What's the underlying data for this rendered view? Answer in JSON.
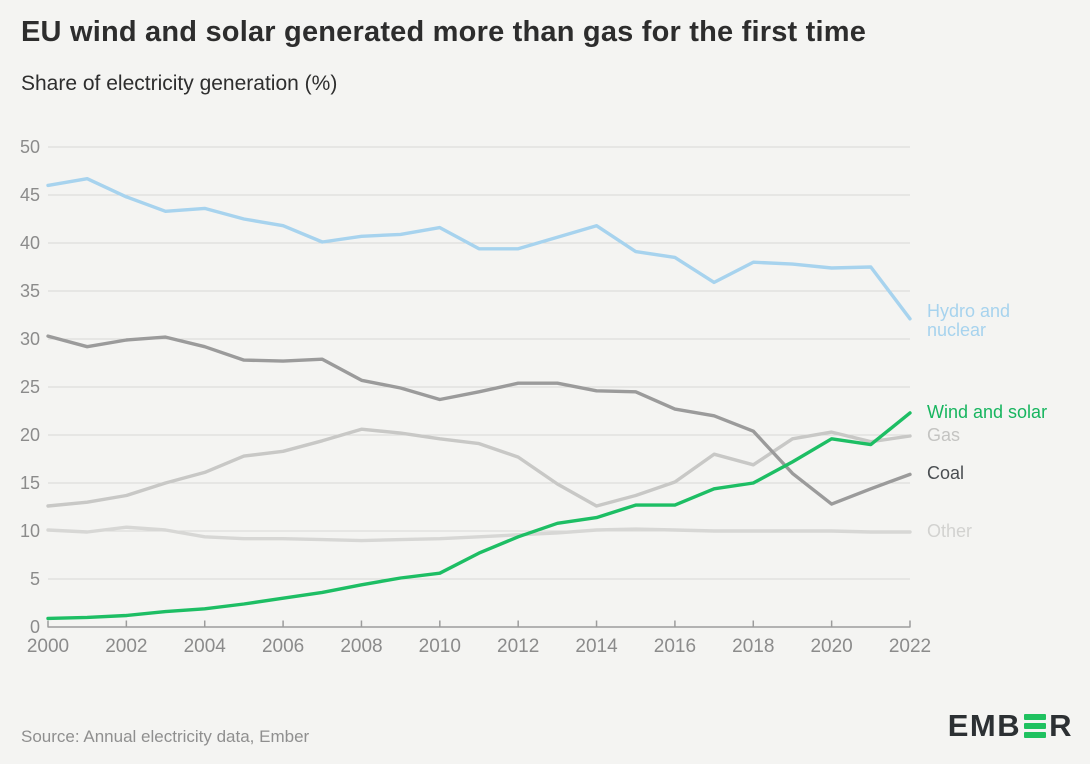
{
  "header": {
    "title": "EU wind and solar generated more than gas for the first time",
    "subtitle": "Share of electricity generation (%)"
  },
  "footer": {
    "source": "Source: Annual electricity data, Ember",
    "logo_name": "EMBER",
    "logo_text_start": "EMB",
    "logo_text_end": "R"
  },
  "colors": {
    "background": "#f4f4f2",
    "grid": "#d9d9d7",
    "axis": "#9c9c9c",
    "tick_label": "#8b8b8b",
    "title_text": "#2d2d2d",
    "source_text": "#8f8f8f",
    "logo_dark": "#2c3033",
    "logo_green": "#1fc15f"
  },
  "chart_data": {
    "type": "line",
    "title": "EU wind and solar generated more than gas for the first time",
    "subtitle": "Share of electricity generation (%)",
    "xlabel": "",
    "ylabel": "Share of electricity generation (%)",
    "x": [
      2000,
      2001,
      2002,
      2003,
      2004,
      2005,
      2006,
      2007,
      2008,
      2009,
      2010,
      2011,
      2012,
      2013,
      2014,
      2015,
      2016,
      2017,
      2018,
      2019,
      2020,
      2021,
      2022
    ],
    "x_tick_labels": [
      "2000",
      "2002",
      "2004",
      "2006",
      "2008",
      "2010",
      "2012",
      "2014",
      "2016",
      "2018",
      "2020",
      "2022"
    ],
    "y_ticks": [
      0,
      5,
      10,
      15,
      20,
      25,
      30,
      35,
      40,
      45,
      50
    ],
    "ylim": [
      0,
      50
    ],
    "xlim": [
      2000,
      2022
    ],
    "grid": "horizontal",
    "legend_position": "right-of-line-ends",
    "series": [
      {
        "name": "Hydro and nuclear",
        "color": "#a7d3ee",
        "label_color": "#a7d3ee",
        "label_two_lines": true,
        "values": [
          46.0,
          46.7,
          44.8,
          43.3,
          43.6,
          42.5,
          41.8,
          40.1,
          40.7,
          40.9,
          41.6,
          39.4,
          39.4,
          40.6,
          41.8,
          39.1,
          38.5,
          35.9,
          38.0,
          37.8,
          37.4,
          37.5,
          32.1
        ]
      },
      {
        "name": "Other",
        "color": "#d7d7d5",
        "label_color": "#d2d2d0",
        "label_two_lines": false,
        "values": [
          10.1,
          9.9,
          10.4,
          10.1,
          9.4,
          9.2,
          9.2,
          9.1,
          9.0,
          9.1,
          9.2,
          9.4,
          9.6,
          9.8,
          10.1,
          10.2,
          10.1,
          10.0,
          10.0,
          10.0,
          10.0,
          9.9,
          9.9
        ]
      },
      {
        "name": "Gas",
        "color": "#c8c8c6",
        "label_color": "#c4c4c2",
        "label_two_lines": false,
        "values": [
          12.6,
          13.0,
          13.7,
          15.0,
          16.1,
          17.8,
          18.3,
          19.4,
          20.6,
          20.2,
          19.6,
          19.1,
          17.7,
          14.9,
          12.6,
          13.7,
          15.1,
          18.0,
          16.9,
          19.6,
          20.3,
          19.3,
          19.9
        ]
      },
      {
        "name": "Coal",
        "color": "#9b9b9b",
        "label_color": "#4a4e52",
        "label_two_lines": false,
        "values": [
          30.3,
          29.2,
          29.9,
          30.2,
          29.2,
          27.8,
          27.7,
          27.9,
          25.7,
          24.9,
          23.7,
          24.5,
          25.4,
          25.4,
          24.6,
          24.5,
          22.7,
          22.0,
          20.4,
          16.0,
          12.8,
          14.4,
          15.9
        ]
      },
      {
        "name": "Wind and solar",
        "color": "#1dbe64",
        "label_color": "#17b55f",
        "label_two_lines": false,
        "values": [
          0.9,
          1.0,
          1.2,
          1.6,
          1.9,
          2.4,
          3.0,
          3.6,
          4.4,
          5.1,
          5.6,
          7.7,
          9.4,
          10.8,
          11.4,
          12.7,
          12.7,
          14.4,
          15.0,
          17.2,
          19.6,
          19.0,
          22.3
        ]
      }
    ]
  }
}
